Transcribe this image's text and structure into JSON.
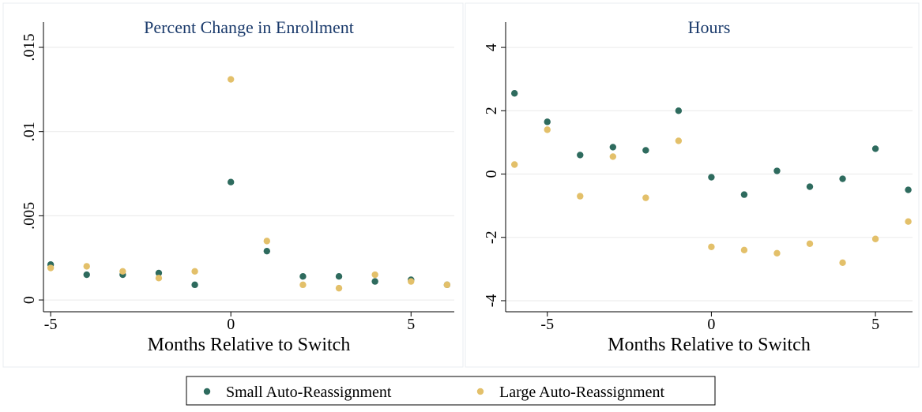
{
  "chart_data": [
    {
      "type": "scatter",
      "title": "Percent Change in Enrollment",
      "x_label": "Months Relative to Switch",
      "x": [
        -5,
        -4,
        -3,
        -2,
        -1,
        0,
        1,
        2,
        3,
        4,
        5,
        6
      ],
      "series": [
        {
          "name": "Small Auto-Reassignment",
          "color": "#2e6b5e",
          "values": [
            0.0021,
            0.0015,
            0.0015,
            0.0016,
            0.0009,
            0.007,
            0.0029,
            0.0014,
            0.0014,
            0.0011,
            0.0012,
            0.0009
          ]
        },
        {
          "name": "Large Auto-Reassignment",
          "color": "#e3c06a",
          "values": [
            0.0019,
            0.002,
            0.0017,
            0.0013,
            0.0017,
            0.0131,
            0.0035,
            0.0009,
            0.0007,
            0.0015,
            0.0011,
            0.0009
          ]
        }
      ],
      "xlim": [
        -5.2,
        6.2
      ],
      "xticks": [
        -5,
        0,
        5
      ],
      "ylim": [
        -0.0007,
        0.0165
      ],
      "yticks": [
        {
          "value": 0,
          "label": "0"
        },
        {
          "value": 0.005,
          "label": ".005"
        },
        {
          "value": 0.01,
          "label": ".01"
        },
        {
          "value": 0.015,
          "label": ".015"
        }
      ],
      "grid": true
    },
    {
      "type": "scatter",
      "title": "Hours",
      "x_label": "Months Relative to Switch",
      "x": [
        -6,
        -5,
        -4,
        -3,
        -2,
        -1,
        0,
        1,
        2,
        3,
        4,
        5,
        6
      ],
      "series": [
        {
          "color": "#2e6b5e",
          "values": [
            2.55,
            1.65,
            0.6,
            0.85,
            0.75,
            2.0,
            -0.1,
            -0.65,
            0.1,
            -0.4,
            -0.15,
            0.8,
            -0.5
          ]
        },
        {
          "color": "#e3c06a",
          "values": [
            0.3,
            1.4,
            -0.7,
            0.55,
            -0.75,
            1.05,
            -2.3,
            -2.4,
            -2.5,
            -2.2,
            -2.8,
            -2.05,
            -1.5
          ]
        }
      ],
      "xlim": [
        -6.27,
        6.13
      ],
      "xticks": [
        -5,
        0,
        5
      ],
      "ylim": [
        -4.35,
        4.8
      ],
      "yticks": [
        -4,
        -2,
        0,
        2,
        4
      ],
      "grid": true
    }
  ]
}
